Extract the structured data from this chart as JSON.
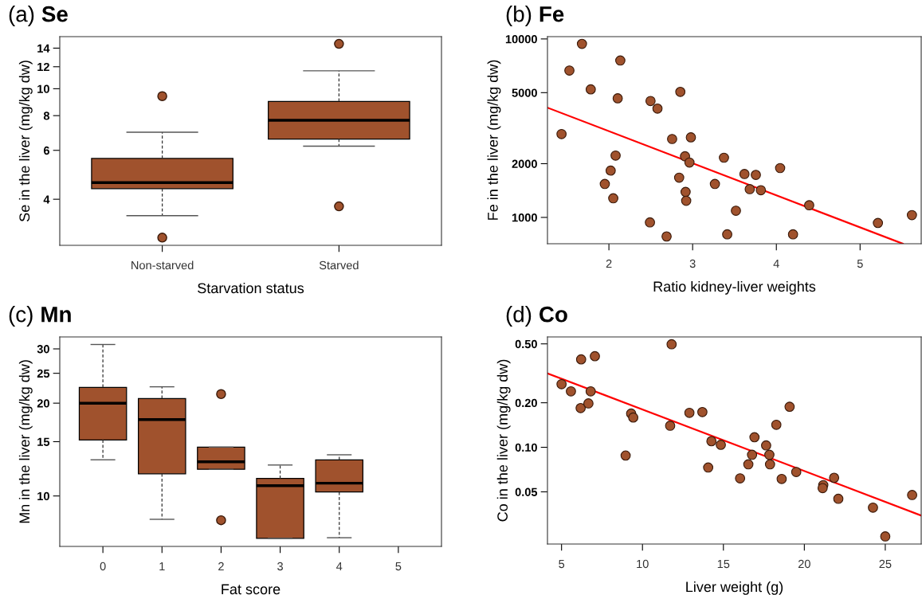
{
  "chart_data": [
    {
      "type": "box",
      "title": "(a) Se",
      "xlabel": "Starvation status",
      "ylabel": "Se in the liver (mg/kg dw)",
      "categories": [
        "Non-starved",
        "Starved"
      ],
      "color": "#a0522d",
      "log": "y",
      "ylim": [
        2.73,
        15.4
      ],
      "yticks": [
        4,
        6,
        8,
        10,
        12,
        14
      ],
      "boxes": [
        {
          "low": 3.49,
          "q1": 4.37,
          "median": 4.59,
          "q3": 5.61,
          "high": 6.97,
          "outliers": [
            9.4,
            2.91
          ]
        },
        {
          "low": 6.21,
          "q1": 6.59,
          "median": 7.7,
          "q3": 9.0,
          "high": 11.6,
          "outliers": [
            14.5,
            3.77
          ]
        }
      ]
    },
    {
      "type": "scatter",
      "title": "(b) Fe",
      "xlabel": "Ratio kidney-liver weights",
      "ylabel": "Fe in the liver (mg/kg dw)",
      "log": "y",
      "xlim": [
        1.266,
        5.73
      ],
      "xticks": [
        2,
        3,
        4,
        5
      ],
      "ylim": [
        712,
        10300
      ],
      "yticks": [
        1000,
        2000,
        5000,
        10000
      ],
      "series": [
        {
          "type": "scatter",
          "marker": "circle",
          "color": "#a0522d",
          "x": [
            1.434,
            1.528,
            1.678,
            1.783,
            1.951,
            2.021,
            2.052,
            2.08,
            2.105,
            2.136,
            2.49,
            2.497,
            2.58,
            2.689,
            2.755,
            2.839,
            2.853,
            2.909,
            2.916,
            2.923,
            2.962,
            2.979,
            3.266,
            3.374,
            3.413,
            3.517,
            3.619,
            3.682,
            3.755,
            3.815,
            4.045,
            4.199,
            4.392,
            5.213,
            5.619
          ],
          "values": [
            2930,
            6650,
            9380,
            5220,
            1540,
            1830,
            1280,
            2220,
            4650,
            7570,
            938,
            4490,
            4070,
            782,
            2750,
            1670,
            5050,
            2200,
            1390,
            1240,
            2030,
            2810,
            1540,
            2160,
            804,
            1090,
            1750,
            1440,
            1730,
            1420,
            1890,
            804,
            1170,
            931,
            1030
          ]
        },
        {
          "type": "line",
          "marker": "none",
          "color": "#ff0000",
          "x": [
            1.266,
            5.51
          ],
          "values": [
            4120,
            712
          ]
        }
      ]
    },
    {
      "type": "box",
      "title": "(c) Mn",
      "xlabel": "Fat score",
      "ylabel": "Mn in the liver (mg/kg dw)",
      "categories": [
        "0",
        "1",
        "2",
        "3",
        "4",
        "5"
      ],
      "color": "#a0522d",
      "log": "y",
      "ylim": [
        6.86,
        32.8
      ],
      "yticks": [
        10,
        15,
        20,
        25,
        30
      ],
      "boxes": [
        {
          "low": 13.1,
          "q1": 15.2,
          "median": 20.0,
          "q3": 22.5,
          "high": 31.0
        },
        {
          "low": 8.4,
          "q1": 11.8,
          "median": 17.7,
          "q3": 20.7,
          "high": 22.6
        },
        {
          "low": 12.2,
          "q1": 12.2,
          "median": 12.9,
          "q3": 14.4,
          "high": 14.4,
          "outliers": [
            21.4,
            8.34
          ]
        },
        {
          "low": 7.29,
          "q1": 7.29,
          "median": 10.8,
          "q3": 11.4,
          "high": 12.6
        },
        {
          "low": 7.32,
          "q1": 10.3,
          "median": 11.0,
          "q3": 13.1,
          "high": 13.6
        },
        null
      ]
    },
    {
      "type": "scatter",
      "title": "(d) Co",
      "xlabel": "Liver weight (g)",
      "ylabel": "Co in the liver (mg/kg dw)",
      "log": "y",
      "xlim": [
        4.13,
        27.22
      ],
      "xticks": [
        5,
        10,
        15,
        20,
        25
      ],
      "ylim": [
        0.0222,
        0.557
      ],
      "yticks": [
        {
          "value": 0.05,
          "label": "0.05"
        },
        {
          "value": 0.1,
          "label": "0.10"
        },
        {
          "value": 0.2,
          "label": "0.20"
        },
        {
          "value": 0.5,
          "label": "0.50"
        }
      ],
      "series": [
        {
          "type": "scatter",
          "marker": "circle",
          "color": "#a0522d",
          "x": [
            5.0,
            5.58,
            6.18,
            6.21,
            6.66,
            6.8,
            7.06,
            8.96,
            9.3,
            9.43,
            11.71,
            11.8,
            12.9,
            13.7,
            14.06,
            14.26,
            14.84,
            16.03,
            16.54,
            16.77,
            16.92,
            17.64,
            17.84,
            17.88,
            18.27,
            18.6,
            19.09,
            19.5,
            21.17,
            21.13,
            21.84,
            22.1,
            24.24,
            25.0,
            26.66
          ],
          "values": [
            0.267,
            0.239,
            0.184,
            0.393,
            0.198,
            0.239,
            0.413,
            0.088,
            0.169,
            0.159,
            0.14,
            0.497,
            0.171,
            0.173,
            0.073,
            0.11,
            0.104,
            0.0617,
            0.0767,
            0.089,
            0.117,
            0.103,
            0.089,
            0.0767,
            0.142,
            0.0611,
            0.188,
            0.0681,
            0.0555,
            0.053,
            0.0622,
            0.0449,
            0.0391,
            0.025,
            0.0476
          ]
        },
        {
          "type": "line",
          "marker": "none",
          "color": "#ff0000",
          "x": [
            4.13,
            27.22
          ],
          "values": [
            0.316,
            0.0346
          ]
        }
      ]
    }
  ]
}
